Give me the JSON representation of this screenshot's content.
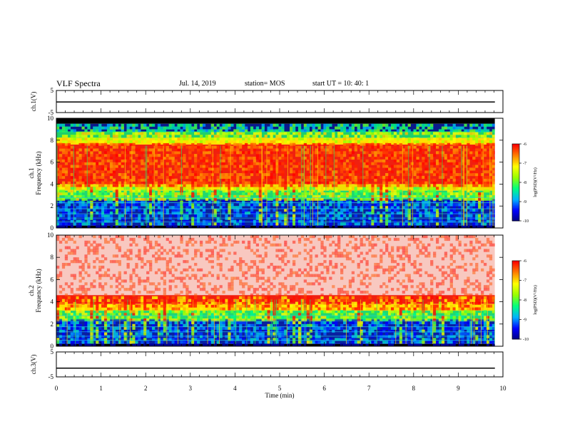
{
  "header": {
    "title": "VLF Spectra",
    "date": "Jul. 14, 2019",
    "station": "station= MOS",
    "start": "start UT =  10: 40: 1"
  },
  "chart_data": [
    {
      "type": "line",
      "panel": "ch1_voltage",
      "ylabel": "ch.1(V)",
      "ylim": [
        -5,
        5
      ],
      "y_ticks": [
        "5",
        "-5"
      ],
      "x": [
        0,
        9.82
      ],
      "values": [
        -0.2,
        -0.2
      ]
    },
    {
      "type": "heatmap",
      "panel": "ch1_spectrogram",
      "ylabel": "ch.1\nFrequency (kHz)",
      "ylim": [
        0,
        10
      ],
      "y_ticks": [
        "0",
        "2",
        "4",
        "6",
        "8",
        "10"
      ],
      "x_range": [
        0,
        9.82
      ],
      "colorbar": {
        "label": "log(PSD)(V²/Hz)",
        "range": [
          -10,
          -6
        ],
        "ticks": [
          "-6",
          "-7",
          "-8",
          "-9",
          "-10"
        ]
      }
    },
    {
      "type": "heatmap",
      "panel": "ch2_spectrogram",
      "ylabel": "ch.2\nFrequency (kHz)",
      "ylim": [
        0,
        10
      ],
      "y_ticks": [
        "0",
        "2",
        "4",
        "6",
        "8",
        "10"
      ],
      "x_range": [
        0,
        9.82
      ],
      "colorbar": {
        "label": "log(PSD)(V²/Hz)",
        "range": [
          -10,
          -6
        ],
        "ticks": [
          "-6",
          "-7",
          "-8",
          "-9",
          "-10"
        ]
      }
    },
    {
      "type": "line",
      "panel": "ch3_voltage",
      "ylabel": "ch.3(V)",
      "ylim": [
        -5,
        5
      ],
      "y_ticks": [
        "5",
        "-5"
      ],
      "x": [
        0,
        9.82
      ],
      "values": [
        -1.5,
        -1.5
      ]
    }
  ],
  "xaxis": {
    "label": "Time (min)",
    "ticks": [
      "0",
      "1",
      "2",
      "3",
      "4",
      "5",
      "6",
      "7",
      "8",
      "9",
      "10"
    ]
  }
}
